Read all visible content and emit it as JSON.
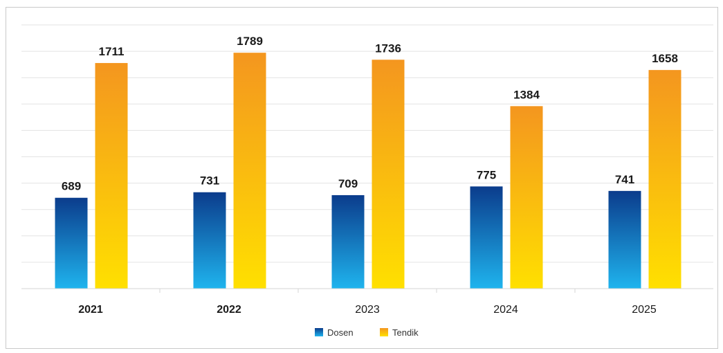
{
  "chart_data": {
    "type": "bar",
    "categories": [
      "2021",
      "2022",
      "2023",
      "2024",
      "2025"
    ],
    "category_bold": [
      true,
      true,
      false,
      false,
      false
    ],
    "series": [
      {
        "name": "Dosen",
        "values": [
          689,
          731,
          709,
          775,
          741
        ]
      },
      {
        "name": "Tendik",
        "values": [
          1711,
          1789,
          1736,
          1384,
          1658
        ]
      }
    ],
    "ylim": [
      0,
      2000
    ],
    "grid": true,
    "gridline_step": 200,
    "legend_position": "bottom-center",
    "colors": {
      "dosen_top": "#0b3c8c",
      "dosen_bottom": "#1fb4ee",
      "tendik_top": "#f4961f",
      "tendik_bottom": "#ffe000",
      "gridline": "#e3e3e3",
      "axis": "#d4d4d4"
    }
  }
}
